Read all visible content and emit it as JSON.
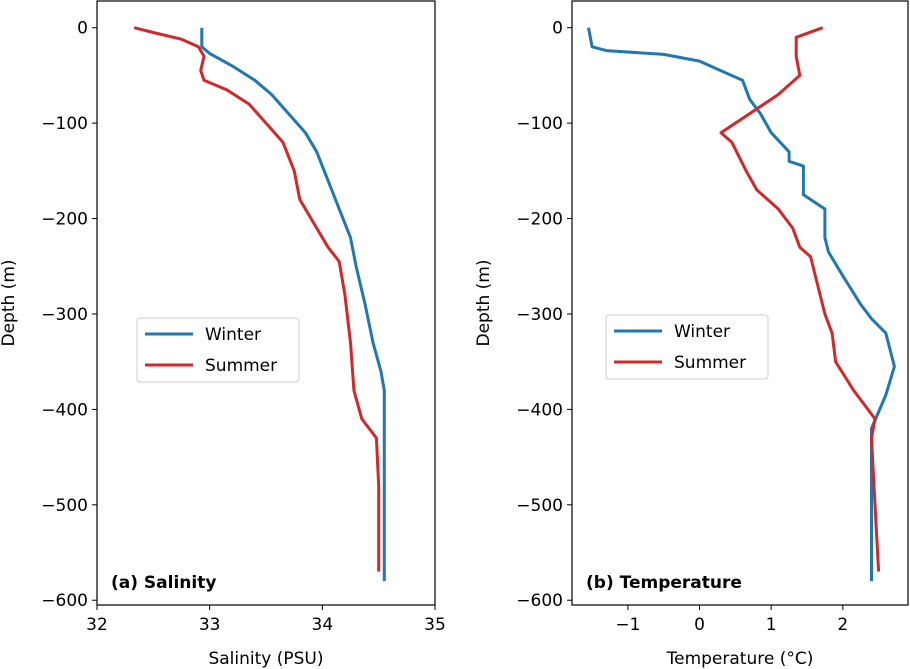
{
  "chart_data": [
    {
      "type": "line",
      "panel_label": "(a) Salinity",
      "xlabel": "Salinity (PSU)",
      "ylabel": "Depth (m)",
      "xlim": [
        32,
        35
      ],
      "ylim": [
        -605,
        28
      ],
      "xticks": [
        32,
        33,
        34,
        35
      ],
      "xtick_labels": [
        "32",
        "33",
        "34",
        "35"
      ],
      "yticks": [
        0,
        -100,
        -200,
        -300,
        -400,
        -500,
        -600
      ],
      "ytick_labels": [
        "0",
        "−100",
        "−200",
        "−300",
        "−400",
        "−500",
        "−600"
      ],
      "legend_position": "center-left",
      "series": [
        {
          "name": "Winter",
          "color": "#1f77b4",
          "x": [
            32.93,
            32.93,
            33.0,
            33.2,
            33.4,
            33.55,
            33.7,
            33.85,
            33.95,
            34.05,
            34.15,
            34.25,
            34.3,
            34.38,
            34.45,
            34.52,
            34.55,
            34.55
          ],
          "y": [
            0,
            -20,
            -27,
            -40,
            -55,
            -70,
            -90,
            -110,
            -130,
            -160,
            -190,
            -220,
            -250,
            -290,
            -330,
            -360,
            -380,
            -580
          ]
        },
        {
          "name": "Summer",
          "color": "#d62728",
          "x": [
            32.33,
            32.5,
            32.75,
            32.9,
            32.95,
            32.92,
            32.95,
            33.15,
            33.35,
            33.5,
            33.65,
            33.75,
            33.8,
            33.95,
            34.05,
            34.15,
            34.2,
            34.25,
            34.28,
            34.35,
            34.48,
            34.5,
            34.5
          ],
          "y": [
            0,
            -5,
            -12,
            -20,
            -30,
            -45,
            -55,
            -65,
            -80,
            -100,
            -120,
            -150,
            -180,
            -210,
            -230,
            -245,
            -280,
            -330,
            -380,
            -410,
            -430,
            -480,
            -570
          ]
        }
      ]
    },
    {
      "type": "line",
      "panel_label": "(b) Temperature",
      "xlabel": "Temperature (°C)",
      "ylabel": "Depth (m)",
      "xlim": [
        -1.78,
        2.91
      ],
      "ylim": [
        -605,
        28
      ],
      "xticks": [
        -1,
        0,
        1,
        2
      ],
      "xtick_labels": [
        "−1",
        "0",
        "1",
        "2"
      ],
      "yticks": [
        0,
        -100,
        -200,
        -300,
        -400,
        -500,
        -600
      ],
      "ytick_labels": [
        "0",
        "−100",
        "−200",
        "−300",
        "−400",
        "−500",
        "−600"
      ],
      "legend_position": "center-left",
      "series": [
        {
          "name": "Winter",
          "color": "#1f77b4",
          "x": [
            -1.55,
            -1.5,
            -1.3,
            -0.5,
            0,
            0.3,
            0.6,
            0.7,
            0.85,
            1.0,
            1.25,
            1.25,
            1.45,
            1.45,
            1.75,
            1.75,
            1.8,
            2.0,
            2.25,
            2.4,
            2.6,
            2.72,
            2.6,
            2.4,
            2.4
          ],
          "y": [
            0,
            -20,
            -24,
            -28,
            -35,
            -45,
            -55,
            -75,
            -90,
            -110,
            -130,
            -140,
            -145,
            -175,
            -190,
            -220,
            -235,
            -260,
            -290,
            -305,
            -320,
            -355,
            -385,
            -420,
            -580
          ]
        },
        {
          "name": "Summer",
          "color": "#d62728",
          "x": [
            1.72,
            1.35,
            1.35,
            1.4,
            1.1,
            0.7,
            0.3,
            0.45,
            0.65,
            0.8,
            1.1,
            1.3,
            1.4,
            1.55,
            1.65,
            1.75,
            1.85,
            1.9,
            2.15,
            2.35,
            2.45,
            2.4,
            2.45,
            2.5
          ],
          "y": [
            0,
            -10,
            -30,
            -50,
            -70,
            -90,
            -110,
            -120,
            -150,
            -170,
            -190,
            -210,
            -230,
            -240,
            -270,
            -300,
            -320,
            -350,
            -380,
            -400,
            -410,
            -430,
            -500,
            -570
          ]
        }
      ]
    }
  ]
}
